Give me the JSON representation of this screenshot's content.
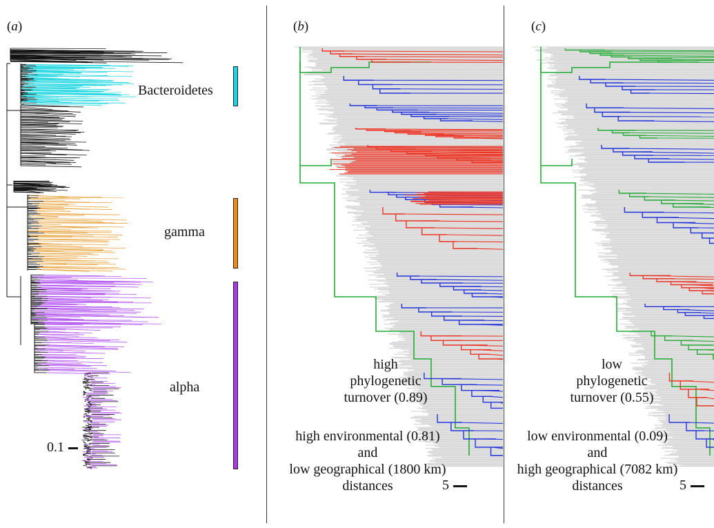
{
  "panels": [
    {
      "label_pre": "(",
      "letter": "a",
      "label_post": ")",
      "clades": [
        {
          "name": "Bacteroidetes",
          "color": "#19d6e0"
        },
        {
          "name": "gamma",
          "color": "#f08a12"
        },
        {
          "name": "alpha",
          "color": "#a63be8"
        }
      ],
      "scale": "0.1"
    },
    {
      "label_pre": "(",
      "letter": "b",
      "label_post": ")",
      "anno1": [
        "high",
        "phylogenetic",
        "turnover (0.89)"
      ],
      "anno2": [
        "high environmental (0.81)",
        "and",
        "low geographical (1800 km)",
        "distances"
      ],
      "scale": "5"
    },
    {
      "label_pre": "(",
      "letter": "c",
      "label_post": ")",
      "anno1": [
        "low",
        "phylogenetic",
        "turnover (0.55)"
      ],
      "anno2": [
        "low environmental (0.09)",
        "and",
        "high geographical (7082 km)",
        "distances"
      ],
      "scale": "5"
    }
  ],
  "colors": {
    "red": "#ee3322",
    "green": "#22aa33",
    "blue": "#2233dd",
    "grey": "#d2d2d2",
    "black": "#111111"
  }
}
